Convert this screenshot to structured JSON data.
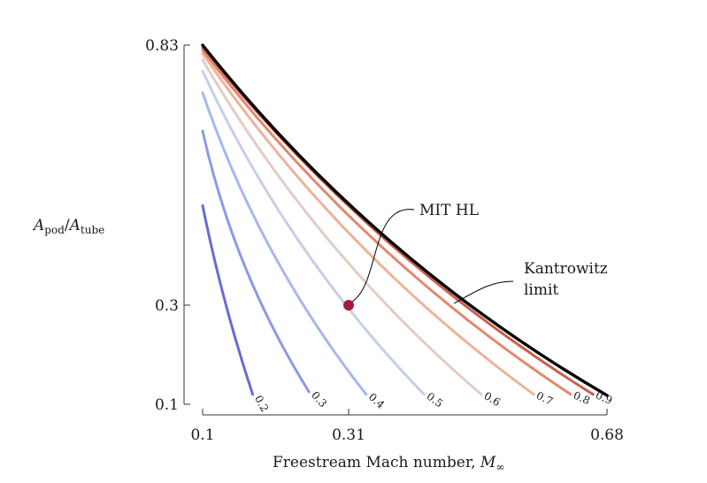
{
  "chart_data": {
    "type": "line",
    "xlabel": "Freestream Mach number, M∞",
    "xlabel_main": "Freestream Mach number, ",
    "xlabel_sym": "M",
    "xlabel_sub": "∞",
    "ylabel": "A_pod/A_tube",
    "ylabel_a1": "A",
    "ylabel_s1": "pod",
    "ylabel_slash": "/",
    "ylabel_a2": "A",
    "ylabel_s2": "tube",
    "xlim": [
      0.1,
      0.68
    ],
    "ylim": [
      0.1,
      0.83
    ],
    "x_ticks": [
      "0.1",
      "0.31",
      "0.68"
    ],
    "x_tick_values": [
      0.1,
      0.31,
      0.68
    ],
    "y_ticks": [
      "0.83",
      "0.3",
      "0.1"
    ],
    "y_tick_values": [
      0.83,
      0.3,
      0.1
    ],
    "grid": false,
    "legend": "none",
    "series": [
      {
        "label": "0.2",
        "color": "#6a6ad8",
        "x": [
          0.1,
          0.172
        ],
        "y": [
          0.503,
          0.12
        ]
      },
      {
        "label": "0.3",
        "color": "#8c99e8",
        "x": [
          0.1,
          0.253
        ],
        "y": [
          0.655,
          0.125
        ]
      },
      {
        "label": "0.4",
        "color": "#a7b7ee",
        "x": [
          0.1,
          0.335
        ],
        "y": [
          0.733,
          0.12
        ]
      },
      {
        "label": "0.5",
        "color": "#c5cfe6",
        "x": [
          0.1,
          0.418
        ],
        "y": [
          0.777,
          0.12
        ]
      },
      {
        "label": "0.6",
        "color": "#e3ccc6",
        "x": [
          0.1,
          0.5
        ],
        "y": [
          0.8,
          0.12
        ]
      },
      {
        "label": "0.7",
        "color": "#eeb29a",
        "x": [
          0.1,
          0.575
        ],
        "y": [
          0.813,
          0.12
        ]
      },
      {
        "label": "0.8",
        "color": "#e2896e",
        "x": [
          0.1,
          0.628
        ],
        "y": [
          0.82,
          0.12
        ]
      },
      {
        "label": "0.9",
        "color": "#c8604a",
        "x": [
          0.1,
          0.66
        ],
        "y": [
          0.825,
          0.12
        ]
      }
    ],
    "limit_curve": {
      "name": "Kantrowitz limit",
      "color": "#000000",
      "x": [
        0.1,
        0.68
      ],
      "y": [
        0.83,
        0.118
      ]
    },
    "point": {
      "name": "MIT HL",
      "x": 0.31,
      "y": 0.3,
      "color": "#a31d3c"
    },
    "annotations": {
      "mit": "MIT HL",
      "kantrowitz_line1": "Kantrowitz",
      "kantrowitz_line2": "limit"
    }
  }
}
